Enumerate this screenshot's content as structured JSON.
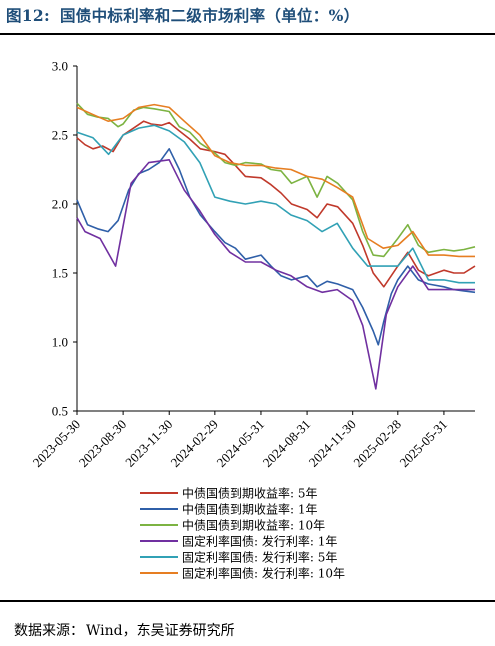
{
  "header": {
    "figure_no": "图12:",
    "title": "国债中标利率和二级市场利率（单位：%）"
  },
  "source": {
    "label": "数据来源：",
    "text": "Wind，东吴证券研究所"
  },
  "chart_data": {
    "type": "line",
    "ylim": [
      0.5,
      3.0
    ],
    "yticks": [
      "3.0",
      "2.5",
      "2.0",
      "1.5",
      "1.0",
      "0.5"
    ],
    "xticks": [
      "2023-05-30",
      "2023-08-30",
      "2023-11-30",
      "2024-02-29",
      "2024-05-31",
      "2024-08-31",
      "2024-11-30",
      "2025-02-28",
      "2025-05-31"
    ],
    "xrange": [
      "2023-05-30",
      "2025-08-01"
    ],
    "grid": false,
    "legend_position": "bottom",
    "series": [
      {
        "name": "中债国债到期收益率: 5年",
        "color": "#c0392b",
        "points": [
          [
            "2023-05-30",
            2.48
          ],
          [
            "2023-06-15",
            2.43
          ],
          [
            "2023-07-01",
            2.4
          ],
          [
            "2023-07-20",
            2.42
          ],
          [
            "2023-08-10",
            2.38
          ],
          [
            "2023-08-30",
            2.5
          ],
          [
            "2023-09-20",
            2.55
          ],
          [
            "2023-10-10",
            2.6
          ],
          [
            "2023-10-25",
            2.58
          ],
          [
            "2023-11-15",
            2.57
          ],
          [
            "2023-11-30",
            2.59
          ],
          [
            "2023-12-20",
            2.53
          ],
          [
            "2024-01-10",
            2.47
          ],
          [
            "2024-01-31",
            2.4
          ],
          [
            "2024-02-29",
            2.38
          ],
          [
            "2024-03-20",
            2.36
          ],
          [
            "2024-04-10",
            2.28
          ],
          [
            "2024-04-30",
            2.2
          ],
          [
            "2024-05-31",
            2.19
          ],
          [
            "2024-06-20",
            2.14
          ],
          [
            "2024-07-10",
            2.08
          ],
          [
            "2024-07-31",
            2.0
          ],
          [
            "2024-08-31",
            1.96
          ],
          [
            "2024-09-20",
            1.9
          ],
          [
            "2024-10-10",
            2.0
          ],
          [
            "2024-10-31",
            1.98
          ],
          [
            "2024-11-30",
            1.86
          ],
          [
            "2024-12-20",
            1.7
          ],
          [
            "2025-01-10",
            1.5
          ],
          [
            "2025-01-31",
            1.4
          ],
          [
            "2025-02-28",
            1.55
          ],
          [
            "2025-03-20",
            1.65
          ],
          [
            "2025-04-10",
            1.52
          ],
          [
            "2025-04-30",
            1.48
          ],
          [
            "2025-05-31",
            1.52
          ],
          [
            "2025-06-20",
            1.5
          ],
          [
            "2025-07-10",
            1.5
          ],
          [
            "2025-08-01",
            1.55
          ]
        ]
      },
      {
        "name": "中债国债到期收益率: 1年",
        "color": "#2f5fa8",
        "points": [
          [
            "2023-05-30",
            2.03
          ],
          [
            "2023-06-20",
            1.85
          ],
          [
            "2023-07-10",
            1.82
          ],
          [
            "2023-07-31",
            1.8
          ],
          [
            "2023-08-20",
            1.88
          ],
          [
            "2023-09-10",
            2.1
          ],
          [
            "2023-09-30",
            2.22
          ],
          [
            "2023-10-20",
            2.25
          ],
          [
            "2023-11-10",
            2.3
          ],
          [
            "2023-11-30",
            2.4
          ],
          [
            "2023-12-20",
            2.25
          ],
          [
            "2024-01-10",
            2.05
          ],
          [
            "2024-01-31",
            1.92
          ],
          [
            "2024-02-29",
            1.8
          ],
          [
            "2024-03-20",
            1.72
          ],
          [
            "2024-04-10",
            1.68
          ],
          [
            "2024-04-30",
            1.6
          ],
          [
            "2024-05-31",
            1.63
          ],
          [
            "2024-06-20",
            1.55
          ],
          [
            "2024-07-10",
            1.48
          ],
          [
            "2024-07-31",
            1.45
          ],
          [
            "2024-08-31",
            1.48
          ],
          [
            "2024-09-20",
            1.4
          ],
          [
            "2024-10-10",
            1.44
          ],
          [
            "2024-10-31",
            1.42
          ],
          [
            "2024-11-30",
            1.38
          ],
          [
            "2024-12-20",
            1.25
          ],
          [
            "2025-01-10",
            1.08
          ],
          [
            "2025-01-20",
            0.98
          ],
          [
            "2025-01-31",
            1.15
          ],
          [
            "2025-02-15",
            1.35
          ],
          [
            "2025-02-28",
            1.45
          ],
          [
            "2025-03-20",
            1.55
          ],
          [
            "2025-04-10",
            1.45
          ],
          [
            "2025-04-30",
            1.42
          ],
          [
            "2025-05-31",
            1.4
          ],
          [
            "2025-06-20",
            1.38
          ],
          [
            "2025-07-10",
            1.37
          ],
          [
            "2025-08-01",
            1.36
          ]
        ]
      },
      {
        "name": "中债国债到期收益率: 10年",
        "color": "#7cb342",
        "points": [
          [
            "2023-05-30",
            2.73
          ],
          [
            "2023-06-20",
            2.65
          ],
          [
            "2023-07-10",
            2.63
          ],
          [
            "2023-07-31",
            2.62
          ],
          [
            "2023-08-20",
            2.56
          ],
          [
            "2023-08-30",
            2.58
          ],
          [
            "2023-09-20",
            2.68
          ],
          [
            "2023-10-10",
            2.7
          ],
          [
            "2023-10-31",
            2.69
          ],
          [
            "2023-11-30",
            2.67
          ],
          [
            "2023-12-20",
            2.56
          ],
          [
            "2024-01-10",
            2.52
          ],
          [
            "2024-01-31",
            2.44
          ],
          [
            "2024-02-29",
            2.37
          ],
          [
            "2024-03-20",
            2.3
          ],
          [
            "2024-04-10",
            2.28
          ],
          [
            "2024-04-30",
            2.3
          ],
          [
            "2024-05-31",
            2.29
          ],
          [
            "2024-06-20",
            2.25
          ],
          [
            "2024-07-10",
            2.24
          ],
          [
            "2024-07-31",
            2.15
          ],
          [
            "2024-08-31",
            2.2
          ],
          [
            "2024-09-20",
            2.05
          ],
          [
            "2024-10-10",
            2.2
          ],
          [
            "2024-10-31",
            2.15
          ],
          [
            "2024-11-30",
            2.03
          ],
          [
            "2024-12-20",
            1.8
          ],
          [
            "2025-01-10",
            1.63
          ],
          [
            "2025-01-31",
            1.62
          ],
          [
            "2025-02-28",
            1.75
          ],
          [
            "2025-03-20",
            1.85
          ],
          [
            "2025-04-10",
            1.7
          ],
          [
            "2025-04-30",
            1.65
          ],
          [
            "2025-05-31",
            1.67
          ],
          [
            "2025-06-20",
            1.66
          ],
          [
            "2025-07-10",
            1.67
          ],
          [
            "2025-08-01",
            1.69
          ]
        ]
      },
      {
        "name": "固定利率国债: 发行利率: 1年",
        "color": "#7030a0",
        "points": [
          [
            "2023-05-30",
            1.9
          ],
          [
            "2023-06-15",
            1.8
          ],
          [
            "2023-07-15",
            1.75
          ],
          [
            "2023-08-15",
            1.55
          ],
          [
            "2023-09-15",
            2.15
          ],
          [
            "2023-10-20",
            2.3
          ],
          [
            "2023-11-30",
            2.32
          ],
          [
            "2023-12-30",
            2.1
          ],
          [
            "2024-01-30",
            1.95
          ],
          [
            "2024-02-29",
            1.78
          ],
          [
            "2024-03-30",
            1.65
          ],
          [
            "2024-04-30",
            1.58
          ],
          [
            "2024-05-31",
            1.58
          ],
          [
            "2024-06-30",
            1.52
          ],
          [
            "2024-07-30",
            1.48
          ],
          [
            "2024-08-31",
            1.4
          ],
          [
            "2024-09-30",
            1.36
          ],
          [
            "2024-10-30",
            1.38
          ],
          [
            "2024-11-30",
            1.3
          ],
          [
            "2024-12-20",
            1.12
          ],
          [
            "2025-01-15",
            0.66
          ],
          [
            "2025-02-05",
            1.2
          ],
          [
            "2025-02-28",
            1.4
          ],
          [
            "2025-03-30",
            1.55
          ],
          [
            "2025-04-30",
            1.38
          ],
          [
            "2025-05-31",
            1.38
          ],
          [
            "2025-06-30",
            1.38
          ],
          [
            "2025-08-01",
            1.38
          ]
        ]
      },
      {
        "name": "固定利率国债: 发行利率: 5年",
        "color": "#31a1b5",
        "points": [
          [
            "2023-05-30",
            2.52
          ],
          [
            "2023-07-01",
            2.48
          ],
          [
            "2023-08-01",
            2.36
          ],
          [
            "2023-08-30",
            2.5
          ],
          [
            "2023-09-30",
            2.55
          ],
          [
            "2023-10-31",
            2.57
          ],
          [
            "2023-11-30",
            2.53
          ],
          [
            "2023-12-30",
            2.45
          ],
          [
            "2024-01-30",
            2.3
          ],
          [
            "2024-02-29",
            2.05
          ],
          [
            "2024-03-30",
            2.02
          ],
          [
            "2024-04-30",
            2.0
          ],
          [
            "2024-05-31",
            2.02
          ],
          [
            "2024-06-30",
            2.0
          ],
          [
            "2024-07-30",
            1.92
          ],
          [
            "2024-08-31",
            1.88
          ],
          [
            "2024-09-30",
            1.8
          ],
          [
            "2024-10-30",
            1.86
          ],
          [
            "2024-11-30",
            1.68
          ],
          [
            "2024-12-30",
            1.55
          ],
          [
            "2025-01-30",
            1.55
          ],
          [
            "2025-02-28",
            1.55
          ],
          [
            "2025-03-30",
            1.68
          ],
          [
            "2025-04-30",
            1.45
          ],
          [
            "2025-05-31",
            1.45
          ],
          [
            "2025-06-30",
            1.43
          ],
          [
            "2025-08-01",
            1.43
          ]
        ]
      },
      {
        "name": "固定利率国债: 发行利率: 10年",
        "color": "#e67e22",
        "points": [
          [
            "2023-05-30",
            2.7
          ],
          [
            "2023-06-30",
            2.65
          ],
          [
            "2023-07-31",
            2.6
          ],
          [
            "2023-08-30",
            2.62
          ],
          [
            "2023-09-30",
            2.7
          ],
          [
            "2023-10-31",
            2.72
          ],
          [
            "2023-11-30",
            2.7
          ],
          [
            "2023-12-30",
            2.6
          ],
          [
            "2024-01-30",
            2.5
          ],
          [
            "2024-02-29",
            2.35
          ],
          [
            "2024-03-30",
            2.3
          ],
          [
            "2024-04-30",
            2.28
          ],
          [
            "2024-05-31",
            2.28
          ],
          [
            "2024-06-30",
            2.26
          ],
          [
            "2024-07-30",
            2.25
          ],
          [
            "2024-08-31",
            2.2
          ],
          [
            "2024-09-30",
            2.18
          ],
          [
            "2024-10-30",
            2.12
          ],
          [
            "2024-11-30",
            2.05
          ],
          [
            "2024-12-30",
            1.75
          ],
          [
            "2025-01-30",
            1.68
          ],
          [
            "2025-02-28",
            1.7
          ],
          [
            "2025-03-30",
            1.8
          ],
          [
            "2025-04-30",
            1.63
          ],
          [
            "2025-05-31",
            1.63
          ],
          [
            "2025-06-30",
            1.62
          ],
          [
            "2025-08-01",
            1.62
          ]
        ]
      }
    ]
  }
}
